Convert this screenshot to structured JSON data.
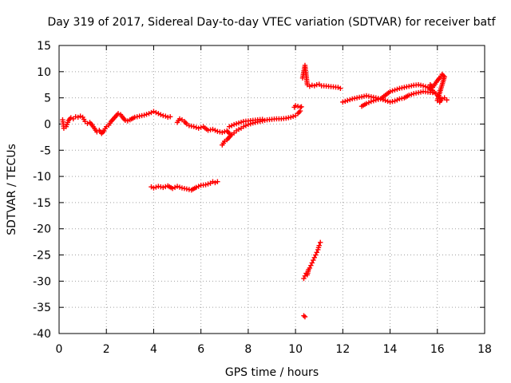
{
  "chart_data": {
    "type": "scatter",
    "title": "Day 319 of 2017, Sidereal Day-to-day VTEC variation (SDTVAR) for receiver batf",
    "xlabel": "GPS time / hours",
    "ylabel": "SDTVAR / TECUs",
    "xlim": [
      0,
      18
    ],
    "ylim": [
      -40,
      15
    ],
    "xticks": [
      0,
      2,
      4,
      6,
      8,
      10,
      12,
      14,
      16,
      18
    ],
    "yticks": [
      15,
      10,
      5,
      0,
      -5,
      -10,
      -15,
      -20,
      -25,
      -30,
      -35,
      -40
    ],
    "grid": true,
    "marker": "+",
    "color": "#ff0000",
    "series": [
      {
        "x": [
          0.15,
          0.2,
          0.3,
          0.4,
          0.5,
          0.6,
          0.7,
          0.8,
          0.9,
          1.0,
          1.1,
          1.2,
          1.3,
          1.4,
          1.6,
          1.7,
          1.8,
          1.9,
          2.0,
          2.1,
          2.2,
          2.3,
          2.4,
          2.5,
          2.6,
          2.7,
          2.8,
          2.9,
          3.0,
          3.2,
          3.4,
          3.6,
          3.8,
          4.0,
          4.1,
          4.2,
          4.3,
          4.4,
          4.5,
          4.6,
          4.7
        ],
        "y": [
          0.8,
          -0.8,
          -0.5,
          0.7,
          1.2,
          1.0,
          1.4,
          1.3,
          1.5,
          1.3,
          0.5,
          0.1,
          0.3,
          -0.2,
          -1.5,
          -1.2,
          -1.8,
          -1.3,
          -0.5,
          -0.2,
          0.5,
          1.0,
          1.5,
          2.0,
          1.8,
          1.2,
          0.7,
          0.6,
          0.8,
          1.3,
          1.5,
          1.7,
          2.0,
          2.4,
          2.2,
          2.0,
          1.8,
          1.6,
          1.5,
          1.3,
          1.4
        ]
      },
      {
        "x": [
          3.9,
          4.0,
          4.2,
          4.4,
          4.6,
          4.8,
          5.0,
          5.2,
          5.4,
          5.6,
          5.8,
          6.0,
          6.2,
          6.4,
          6.5,
          6.6,
          6.7
        ],
        "y": [
          -12.0,
          -12.2,
          -11.9,
          -12.1,
          -11.8,
          -12.3,
          -11.9,
          -12.2,
          -12.4,
          -12.6,
          -12.1,
          -11.7,
          -11.6,
          -11.3,
          -11.0,
          -11.2,
          -11.0
        ]
      },
      {
        "x": [
          5.0,
          5.1,
          5.2,
          5.3,
          5.4,
          5.5,
          5.7,
          5.9,
          6.1,
          6.3,
          6.5,
          6.7,
          6.9,
          7.1,
          7.2
        ],
        "y": [
          0.3,
          1.0,
          0.8,
          0.5,
          0.0,
          -0.3,
          -0.5,
          -0.8,
          -0.5,
          -1.2,
          -1.0,
          -1.4,
          -1.6,
          -1.3,
          -1.8
        ]
      },
      {
        "x": [
          6.9,
          7.0,
          7.1,
          7.2,
          7.3,
          7.4,
          7.5,
          7.6,
          7.7,
          7.8,
          7.9,
          8.0,
          8.2,
          8.4,
          8.6,
          8.8,
          9.0,
          9.2,
          9.4,
          9.6,
          9.8,
          10.0,
          10.1,
          10.2
        ],
        "y": [
          -4.0,
          -3.3,
          -3.0,
          -2.5,
          -2.0,
          -1.7,
          -1.3,
          -1.0,
          -0.8,
          -0.5,
          -0.3,
          -0.1,
          0.2,
          0.4,
          0.6,
          0.8,
          0.9,
          1.0,
          1.0,
          1.1,
          1.3,
          1.6,
          2.0,
          2.5
        ]
      },
      {
        "x": [
          7.2,
          7.4,
          7.6,
          7.8,
          8.0,
          8.2,
          8.4,
          8.6
        ],
        "y": [
          -0.5,
          -0.1,
          0.2,
          0.5,
          0.6,
          0.7,
          0.8,
          0.9
        ]
      },
      {
        "x": [
          9.95,
          10.0,
          10.1,
          10.2,
          10.25
        ],
        "y": [
          3.2,
          3.5,
          3.4,
          3.2,
          3.3
        ]
      },
      {
        "x": [
          10.3,
          10.4,
          10.5,
          10.6,
          10.7,
          10.8,
          10.9,
          11.0,
          11.1,
          11.2,
          11.4,
          11.6,
          11.8,
          11.9
        ],
        "y": [
          8.8,
          11.2,
          7.5,
          7.2,
          7.4,
          7.3,
          7.5,
          7.6,
          7.3,
          7.3,
          7.2,
          7.1,
          7.0,
          6.8
        ]
      },
      {
        "x": [
          10.35,
          10.4,
          10.45,
          10.5,
          10.55,
          10.6,
          10.65,
          10.7,
          10.75,
          10.8,
          10.85,
          10.9,
          10.95,
          11.0,
          11.05
        ],
        "y": [
          -29.5,
          -29.0,
          -28.5,
          -28.8,
          -27.8,
          -27.5,
          -27.0,
          -26.5,
          -26.0,
          -25.5,
          -25.0,
          -24.5,
          -24.0,
          -23.2,
          -22.6
        ]
      },
      {
        "x": [
          10.35,
          10.4
        ],
        "y": [
          -36.6,
          -36.8
        ]
      },
      {
        "x": [
          12.0,
          12.2,
          12.4,
          12.6,
          12.8,
          13.0,
          13.2,
          13.4,
          13.6,
          13.8,
          14.0,
          14.2,
          14.4,
          14.6,
          14.8,
          15.0,
          15.2,
          15.4,
          15.6,
          15.8,
          16.0,
          16.1
        ],
        "y": [
          4.2,
          4.5,
          4.8,
          5.0,
          5.2,
          5.4,
          5.2,
          5.0,
          4.8,
          5.5,
          6.2,
          6.5,
          6.8,
          7.0,
          7.2,
          7.4,
          7.5,
          7.3,
          7.0,
          6.4,
          5.5,
          5.0
        ]
      },
      {
        "x": [
          12.8,
          13.0,
          13.2,
          13.4,
          13.6,
          13.8,
          14.0,
          14.2,
          14.4,
          14.6,
          14.8,
          15.0,
          15.2,
          15.4,
          15.6,
          15.8
        ],
        "y": [
          3.4,
          3.9,
          4.3,
          4.6,
          4.8,
          4.5,
          4.2,
          4.4,
          4.8,
          5.0,
          5.5,
          5.8,
          6.0,
          6.2,
          6.1,
          6.0
        ]
      },
      {
        "x": [
          15.7,
          15.8,
          16.0,
          16.1,
          16.2,
          16.3,
          16.0,
          16.1,
          16.2,
          16.3,
          16.4
        ],
        "y": [
          7.5,
          7.0,
          8.3,
          8.8,
          9.5,
          9.0,
          4.5,
          4.2,
          4.8,
          5.0,
          4.6
        ]
      }
    ]
  }
}
